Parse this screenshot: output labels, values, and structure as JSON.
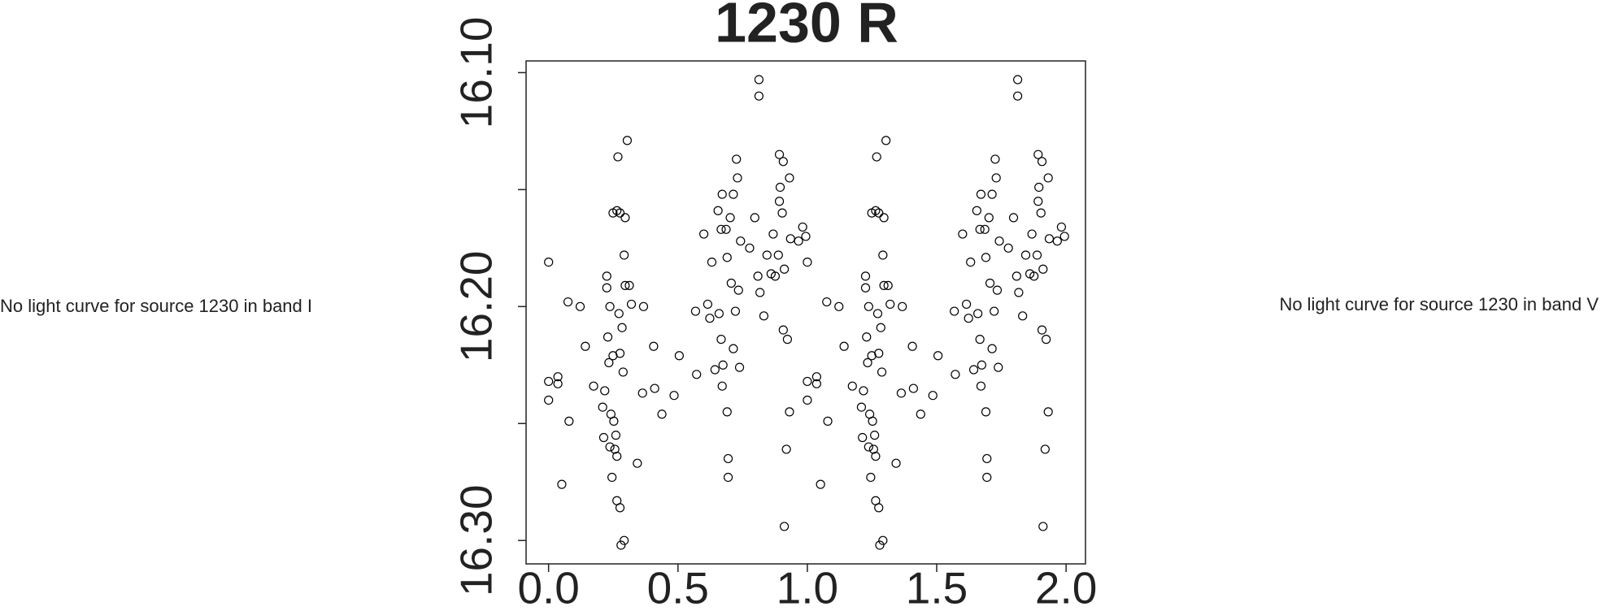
{
  "chart_data": {
    "type": "scatter",
    "title": "1230 R",
    "left_note": "No light curve for source 1230 in band I",
    "right_note": "No light curve for source 1230 in band V",
    "color": "#000000",
    "y_inverted": true,
    "xlim": [
      -0.087,
      2.075
    ],
    "ylim": [
      16.095,
      16.31
    ],
    "xticks": [
      {
        "value": 0,
        "label": "0.0"
      },
      0.5,
      {
        "value": 1,
        "label": "1.0"
      },
      1.5,
      {
        "value": 2,
        "label": "2.0"
      }
    ],
    "yticks": [
      {
        "value": 16.1,
        "label": "16.10"
      },
      {
        "value": 16.2,
        "label": "16.20"
      },
      {
        "value": 16.3,
        "label": "16.30"
      }
    ],
    "yminor_ticks": [
      16.15,
      16.25
    ],
    "x": [
      0.0,
      0.0,
      0.0,
      0.036,
      0.036,
      0.051,
      0.079,
      0.075,
      0.122,
      0.142,
      0.174,
      0.209,
      0.213,
      0.217,
      0.225,
      0.225,
      0.229,
      0.233,
      0.237,
      0.237,
      0.241,
      0.245,
      0.249,
      0.249,
      0.252,
      0.256,
      0.26,
      0.264,
      0.264,
      0.264,
      0.268,
      0.272,
      0.276,
      0.276,
      0.276,
      0.28,
      0.284,
      0.288,
      0.292,
      0.292,
      0.296,
      0.296,
      0.304,
      0.312,
      0.32,
      0.343,
      0.363,
      0.367,
      0.406,
      0.41,
      0.438,
      0.485,
      0.505,
      0.572,
      0.568,
      0.6,
      0.615,
      0.623,
      0.631,
      0.643,
      0.655,
      0.659,
      0.667,
      0.667,
      0.671,
      0.671,
      0.674,
      0.686,
      0.69,
      0.69,
      0.694,
      0.694,
      0.702,
      0.706,
      0.714,
      0.714,
      0.722,
      0.726,
      0.73,
      0.734,
      0.738,
      0.742,
      0.777,
      0.797,
      0.809,
      0.813,
      0.813,
      0.817,
      0.832,
      0.844,
      0.86,
      0.868,
      0.876,
      0.888,
      0.892,
      0.892,
      0.895,
      0.903,
      0.907,
      0.907,
      0.911,
      0.911,
      0.919,
      0.923,
      0.931,
      0.935,
      0.966,
      0.982,
      0.994,
      0.931,
      1.0,
      1.0,
      1.0,
      1.036,
      1.036,
      1.051,
      1.079,
      1.075,
      1.122,
      1.142,
      1.174,
      1.209,
      1.213,
      1.217,
      1.225,
      1.225,
      1.229,
      1.233,
      1.237,
      1.237,
      1.241,
      1.245,
      1.249,
      1.249,
      1.252,
      1.256,
      1.26,
      1.264,
      1.264,
      1.264,
      1.268,
      1.272,
      1.276,
      1.276,
      1.276,
      1.28,
      1.284,
      1.288,
      1.292,
      1.292,
      1.296,
      1.296,
      1.304,
      1.312,
      1.32,
      1.343,
      1.363,
      1.367,
      1.406,
      1.41,
      1.438,
      1.485,
      1.505,
      1.572,
      1.568,
      1.6,
      1.615,
      1.623,
      1.631,
      1.643,
      1.655,
      1.659,
      1.667,
      1.667,
      1.671,
      1.671,
      1.674,
      1.686,
      1.69,
      1.69,
      1.694,
      1.694,
      1.702,
      1.706,
      1.714,
      1.714,
      1.722,
      1.726,
      1.73,
      1.734,
      1.738,
      1.742,
      1.777,
      1.797,
      1.809,
      1.813,
      1.813,
      1.817,
      1.832,
      1.844,
      1.86,
      1.868,
      1.876,
      1.888,
      1.892,
      1.892,
      1.895,
      1.903,
      1.907,
      1.907,
      1.911,
      1.911,
      1.919,
      1.923,
      1.931,
      1.935,
      1.966,
      1.982,
      1.994,
      1.931
    ],
    "values": [
      16.181,
      16.232,
      16.24,
      16.23,
      16.233,
      16.276,
      16.249,
      16.198,
      16.2,
      16.217,
      16.234,
      16.243,
      16.256,
      16.236,
      16.187,
      16.192,
      16.213,
      16.224,
      16.2,
      16.26,
      16.246,
      16.273,
      16.16,
      16.221,
      16.249,
      16.261,
      16.255,
      16.159,
      16.264,
      16.283,
      16.136,
      16.203,
      16.286,
      16.16,
      16.22,
      16.302,
      16.209,
      16.228,
      16.3,
      16.178,
      16.162,
      16.191,
      16.129,
      16.191,
      16.199,
      16.267,
      16.237,
      16.2,
      16.217,
      16.235,
      16.246,
      16.238,
      16.221,
      16.229,
      16.202,
      16.169,
      16.199,
      16.205,
      16.181,
      16.227,
      16.159,
      16.203,
      16.214,
      16.167,
      16.152,
      16.234,
      16.225,
      16.167,
      16.245,
      16.179,
      16.265,
      16.273,
      16.162,
      16.19,
      16.218,
      16.152,
      16.202,
      16.137,
      16.145,
      16.193,
      16.226,
      16.172,
      16.175,
      16.162,
      16.187,
      16.103,
      16.11,
      16.194,
      16.204,
      16.178,
      16.186,
      16.169,
      16.187,
      16.178,
      16.135,
      16.155,
      16.149,
      16.16,
      16.138,
      16.21,
      16.294,
      16.184,
      16.261,
      16.214,
      16.245,
      16.171,
      16.172,
      16.166,
      16.17,
      16.145,
      16.181,
      16.232,
      16.24,
      16.23,
      16.233,
      16.276,
      16.249,
      16.198,
      16.2,
      16.217,
      16.234,
      16.243,
      16.256,
      16.236,
      16.187,
      16.192,
      16.213,
      16.224,
      16.2,
      16.26,
      16.246,
      16.273,
      16.16,
      16.221,
      16.249,
      16.261,
      16.255,
      16.159,
      16.264,
      16.283,
      16.136,
      16.203,
      16.286,
      16.16,
      16.22,
      16.302,
      16.209,
      16.228,
      16.3,
      16.178,
      16.162,
      16.191,
      16.129,
      16.191,
      16.199,
      16.267,
      16.237,
      16.2,
      16.217,
      16.235,
      16.246,
      16.238,
      16.221,
      16.229,
      16.202,
      16.169,
      16.199,
      16.205,
      16.181,
      16.227,
      16.159,
      16.203,
      16.214,
      16.167,
      16.152,
      16.234,
      16.225,
      16.167,
      16.245,
      16.179,
      16.265,
      16.273,
      16.162,
      16.19,
      16.218,
      16.152,
      16.202,
      16.137,
      16.145,
      16.193,
      16.226,
      16.172,
      16.175,
      16.162,
      16.187,
      16.103,
      16.11,
      16.194,
      16.204,
      16.178,
      16.186,
      16.169,
      16.187,
      16.178,
      16.135,
      16.155,
      16.149,
      16.16,
      16.138,
      16.21,
      16.294,
      16.184,
      16.261,
      16.214,
      16.245,
      16.171,
      16.172,
      16.166,
      16.17,
      16.145
    ]
  }
}
